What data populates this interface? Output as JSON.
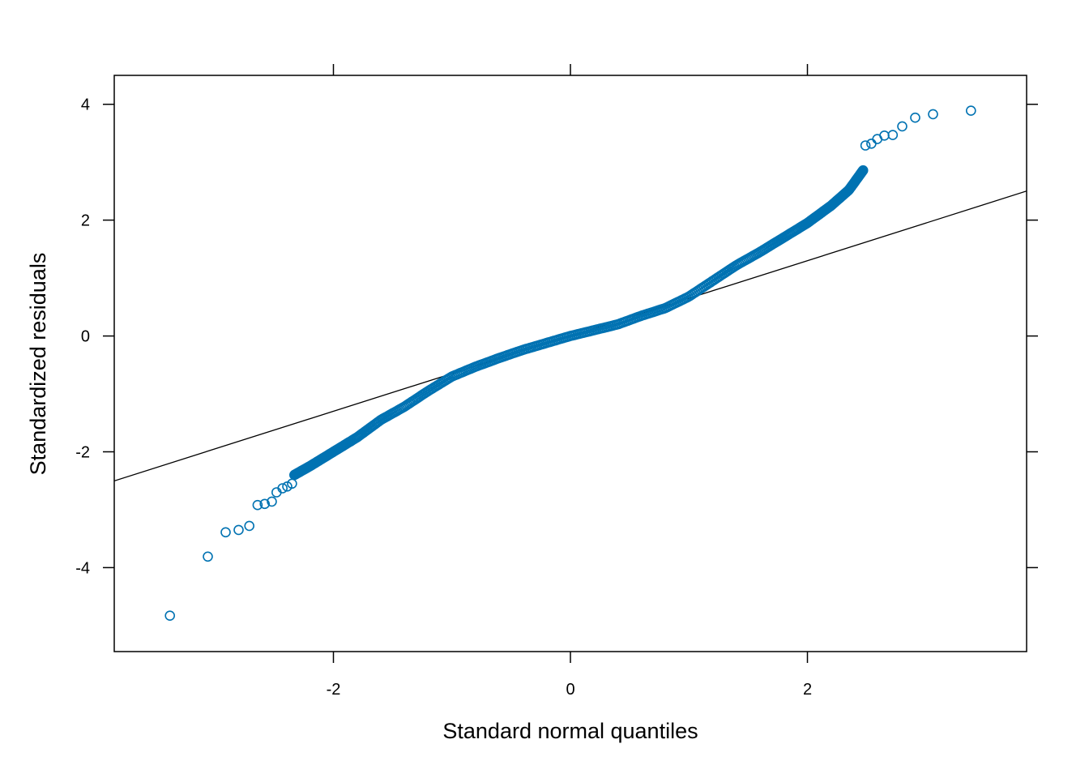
{
  "chart_data": {
    "type": "scatter",
    "title": "",
    "xlabel": "Standard normal quantiles",
    "ylabel": "Standardized residuals",
    "xlim": [
      -3.85,
      3.85
    ],
    "ylim": [
      -5.45,
      4.5
    ],
    "xticks": [
      -2,
      0,
      2
    ],
    "xtick_labels": [
      "-2",
      "0",
      "2"
    ],
    "yticks": [
      -4,
      -2,
      0,
      2,
      4
    ],
    "ytick_labels": [
      "-4",
      "-2",
      "0",
      "2",
      "4"
    ],
    "grid": false,
    "legend": "none",
    "marker": "open-circle",
    "point_color": "#0072B2",
    "line_color": "#000000",
    "reference_line": {
      "intercept": 0.0,
      "slope": 0.65
    },
    "outliers": [
      {
        "x": -3.38,
        "y": -4.83
      },
      {
        "x": -3.06,
        "y": -3.81
      },
      {
        "x": -2.91,
        "y": -3.39
      },
      {
        "x": -2.8,
        "y": -3.35
      },
      {
        "x": -2.71,
        "y": -3.28
      },
      {
        "x": -2.64,
        "y": -2.92
      },
      {
        "x": -2.58,
        "y": -2.9
      },
      {
        "x": -2.52,
        "y": -2.86
      },
      {
        "x": -2.48,
        "y": -2.7
      },
      {
        "x": -2.43,
        "y": -2.63
      },
      {
        "x": -2.39,
        "y": -2.6
      },
      {
        "x": -2.35,
        "y": -2.55
      },
      {
        "x": 2.49,
        "y": 3.29
      },
      {
        "x": 2.54,
        "y": 3.32
      },
      {
        "x": 2.59,
        "y": 3.4
      },
      {
        "x": 2.65,
        "y": 3.46
      },
      {
        "x": 2.72,
        "y": 3.47
      },
      {
        "x": 2.8,
        "y": 3.62
      },
      {
        "x": 2.91,
        "y": 3.77
      },
      {
        "x": 3.06,
        "y": 3.83
      },
      {
        "x": 3.38,
        "y": 3.89
      }
    ],
    "body_points": {
      "count": 420,
      "x_range": [
        -2.33,
        2.47
      ],
      "quantile_curve": [
        [
          -2.33,
          -2.4
        ],
        [
          -2.2,
          -2.25
        ],
        [
          -2.0,
          -2.0
        ],
        [
          -1.8,
          -1.75
        ],
        [
          -1.6,
          -1.45
        ],
        [
          -1.4,
          -1.22
        ],
        [
          -1.2,
          -0.95
        ],
        [
          -1.0,
          -0.7
        ],
        [
          -0.8,
          -0.53
        ],
        [
          -0.6,
          -0.38
        ],
        [
          -0.4,
          -0.24
        ],
        [
          -0.2,
          -0.12
        ],
        [
          0.0,
          0.0
        ],
        [
          0.2,
          0.1
        ],
        [
          0.4,
          0.2
        ],
        [
          0.6,
          0.35
        ],
        [
          0.8,
          0.48
        ],
        [
          1.0,
          0.68
        ],
        [
          1.2,
          0.95
        ],
        [
          1.4,
          1.22
        ],
        [
          1.6,
          1.45
        ],
        [
          1.8,
          1.7
        ],
        [
          2.0,
          1.95
        ],
        [
          2.2,
          2.25
        ],
        [
          2.35,
          2.52
        ],
        [
          2.47,
          2.86
        ]
      ]
    }
  }
}
